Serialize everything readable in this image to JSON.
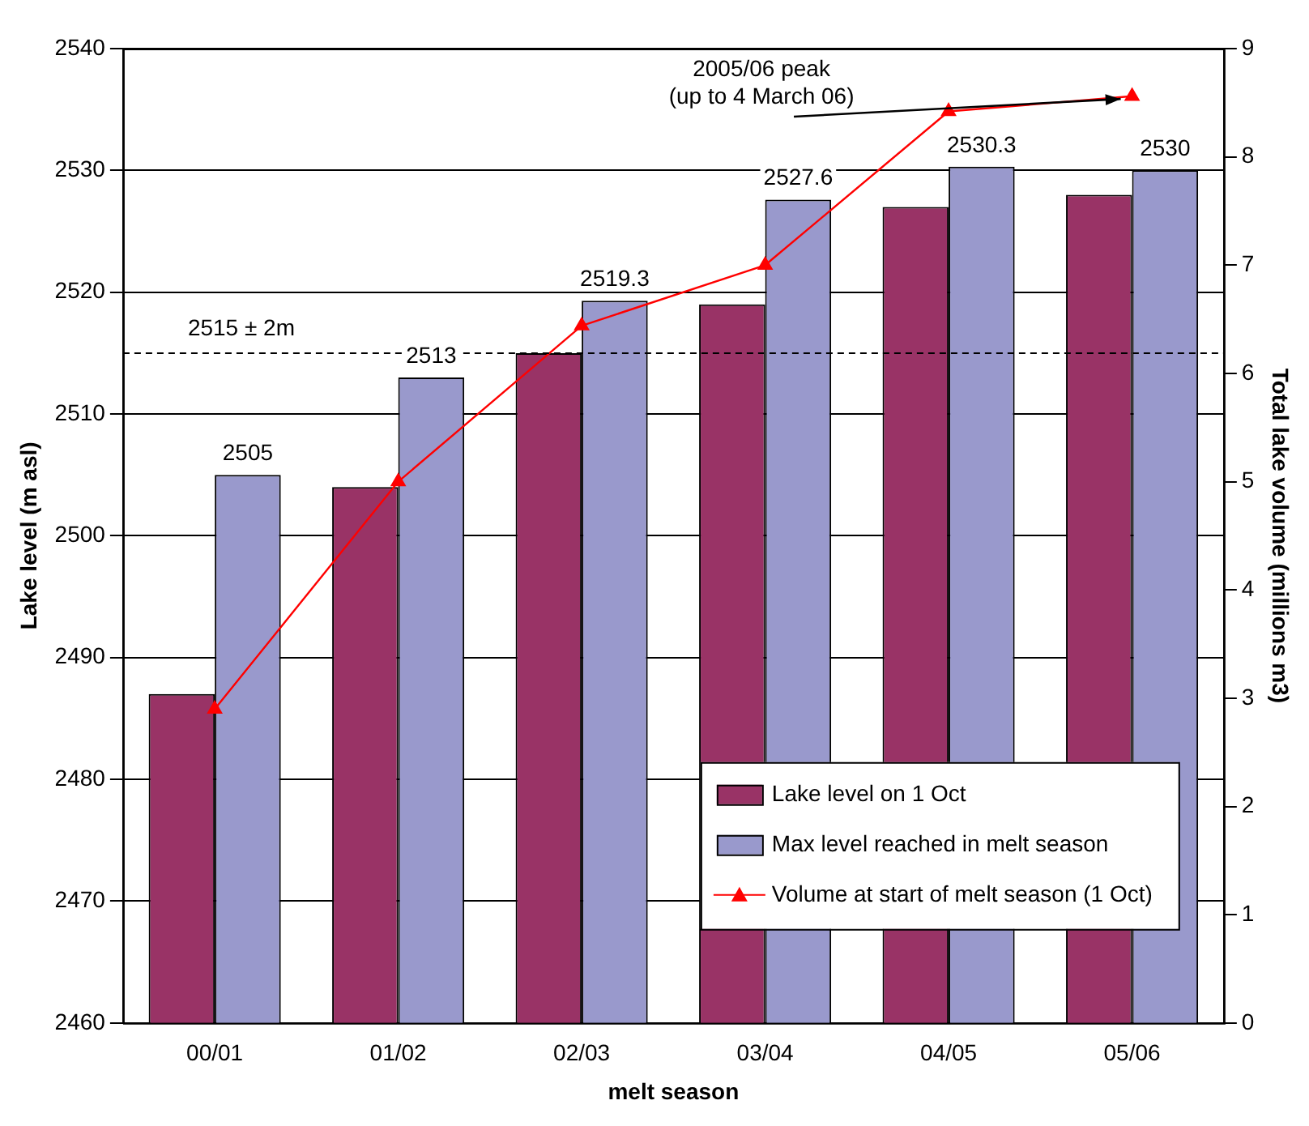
{
  "chart_data": {
    "type": "bar",
    "xlabel": "melt season",
    "ylabel": "Lake level (m asl)",
    "y2label": "Total lake volume (millions m3)",
    "categories": [
      "00/01",
      "01/02",
      "02/03",
      "03/04",
      "04/05",
      "05/06"
    ],
    "series": [
      {
        "name": "Lake level on 1 Oct",
        "color": "#993366",
        "values": [
          2487,
          2504,
          2515,
          2519,
          2527,
          2528
        ]
      },
      {
        "name": "Max level reached in melt season",
        "color": "#9999cc",
        "values": [
          2505,
          2513,
          2519.3,
          2527.6,
          2530.3,
          2530
        ],
        "value_labels": [
          "2505",
          "2513",
          "2519.3",
          "2527.6",
          "2530.3",
          "2530"
        ]
      },
      {
        "name": "Volume at start of melt season (1 Oct)",
        "type": "line",
        "axis": "y2",
        "color": "#ff0000",
        "marker": "triangle",
        "values": [
          2.9,
          5.0,
          6.44,
          7.0,
          8.42,
          8.56
        ]
      }
    ],
    "ylim": [
      2460,
      2540
    ],
    "yticks": [
      2460,
      2470,
      2480,
      2490,
      2500,
      2510,
      2520,
      2530,
      2540
    ],
    "y2lim": [
      0,
      9
    ],
    "y2ticks": [
      0,
      1,
      2,
      3,
      4,
      5,
      6,
      7,
      8,
      9
    ],
    "grid": "y",
    "legend": "bottom right",
    "ref_lines": [
      {
        "axis": "y",
        "value": 2515,
        "label": "2515 ± 2m",
        "color": "#000000",
        "line_style": "dashed"
      }
    ],
    "annotations": [
      {
        "text": "2005/06 peak\n(up to 4 March 06)",
        "x": "05/06",
        "y": 2536
      }
    ]
  }
}
